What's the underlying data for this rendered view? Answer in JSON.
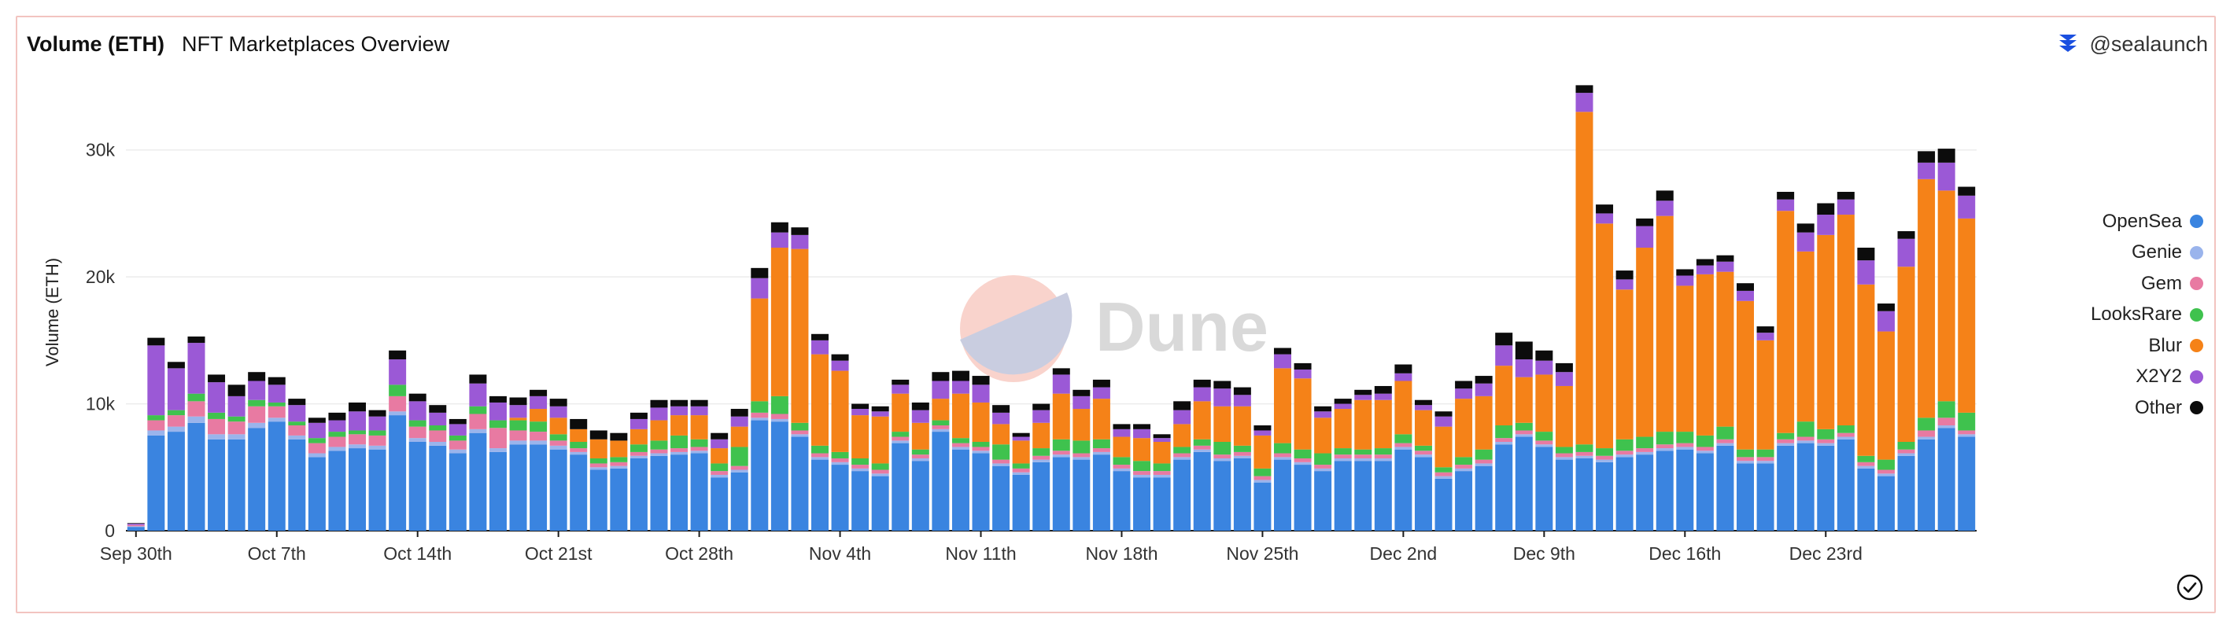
{
  "header": {
    "title": "Volume (ETH)",
    "subtitle": "NFT Marketplaces Overview"
  },
  "brand": {
    "handle": "@sealaunch",
    "icon": "sealaunch-logo-icon"
  },
  "watermark": {
    "text": "Dune"
  },
  "chart_data": {
    "type": "bar",
    "stacked": true,
    "ylabel": "Volume (ETH)",
    "xlabel": "",
    "ylim": [
      0,
      35000
    ],
    "yticks": [
      0,
      10000,
      20000,
      30000
    ],
    "ytick_labels": [
      "0",
      "10k",
      "20k",
      "30k"
    ],
    "xtick_labels": [
      "Sep 30th",
      "Oct 7th",
      "Oct 14th",
      "Oct 21st",
      "Oct 28th",
      "Nov 4th",
      "Nov 11th",
      "Nov 18th",
      "Nov 25th",
      "Dec 2nd",
      "Dec 9th",
      "Dec 16th",
      "Dec 23rd"
    ],
    "legend_position": "right",
    "grid": true,
    "series": [
      {
        "name": "OpenSea",
        "color": "#3a84e0"
      },
      {
        "name": "Genie",
        "color": "#9ab4ec"
      },
      {
        "name": "Gem",
        "color": "#e87aa2"
      },
      {
        "name": "LooksRare",
        "color": "#3fc24e"
      },
      {
        "name": "Blur",
        "color": "#f58218"
      },
      {
        "name": "X2Y2",
        "color": "#9b59d6"
      },
      {
        "name": "Other",
        "color": "#0c0c0c"
      }
    ],
    "days": [
      {
        "date": "Sep 30th",
        "values": [
          300,
          50,
          100,
          0,
          0,
          100,
          50
        ]
      },
      {
        "date": "Oct 1st",
        "values": [
          7500,
          400,
          800,
          400,
          0,
          5500,
          600
        ]
      },
      {
        "date": "Oct 2nd",
        "values": [
          7800,
          400,
          900,
          400,
          0,
          3300,
          500
        ]
      },
      {
        "date": "Oct 3rd",
        "values": [
          8500,
          500,
          1200,
          600,
          0,
          4000,
          500
        ]
      },
      {
        "date": "Oct 4th",
        "values": [
          7200,
          400,
          1200,
          500,
          0,
          2400,
          600
        ]
      },
      {
        "date": "Oct 5th",
        "values": [
          7200,
          400,
          1000,
          400,
          0,
          1600,
          900
        ]
      },
      {
        "date": "Oct 6th",
        "values": [
          8100,
          400,
          1300,
          500,
          0,
          1500,
          700
        ]
      },
      {
        "date": "Oct 7th",
        "values": [
          8600,
          300,
          900,
          300,
          0,
          1400,
          600
        ]
      },
      {
        "date": "Oct 8th",
        "values": [
          7200,
          300,
          800,
          300,
          0,
          1300,
          500
        ]
      },
      {
        "date": "Oct 9th",
        "values": [
          5800,
          300,
          800,
          400,
          0,
          1200,
          400
        ]
      },
      {
        "date": "Oct 10th",
        "values": [
          6300,
          300,
          800,
          400,
          0,
          900,
          600
        ]
      },
      {
        "date": "Oct 11th",
        "values": [
          6500,
          300,
          800,
          300,
          0,
          1500,
          700
        ]
      },
      {
        "date": "Oct 12th",
        "values": [
          6400,
          300,
          800,
          400,
          0,
          1100,
          500
        ]
      },
      {
        "date": "Oct 13th",
        "values": [
          9100,
          300,
          1200,
          900,
          0,
          2000,
          700
        ]
      },
      {
        "date": "Oct 14th",
        "values": [
          7000,
          300,
          900,
          500,
          0,
          1500,
          600
        ]
      },
      {
        "date": "Oct 15th",
        "values": [
          6700,
          300,
          900,
          400,
          0,
          1000,
          600
        ]
      },
      {
        "date": "Oct 16th",
        "values": [
          6100,
          300,
          700,
          400,
          0,
          900,
          400
        ]
      },
      {
        "date": "Oct 17th",
        "values": [
          7700,
          300,
          1200,
          600,
          0,
          1800,
          700
        ]
      },
      {
        "date": "Oct 18th",
        "values": [
          6200,
          300,
          1600,
          600,
          0,
          1400,
          500
        ]
      },
      {
        "date": "Oct 19th",
        "values": [
          6800,
          300,
          800,
          800,
          200,
          1000,
          600
        ]
      },
      {
        "date": "Oct 20th",
        "values": [
          6800,
          300,
          700,
          800,
          1000,
          1000,
          500
        ]
      },
      {
        "date": "Oct 21st",
        "values": [
          6400,
          300,
          400,
          500,
          1300,
          900,
          600
        ]
      },
      {
        "date": "Oct 22nd",
        "values": [
          6000,
          200,
          300,
          500,
          1000,
          0,
          800
        ]
      },
      {
        "date": "Oct 23rd",
        "values": [
          4800,
          200,
          300,
          400,
          1500,
          0,
          700
        ]
      },
      {
        "date": "Oct 24th",
        "values": [
          4900,
          200,
          300,
          400,
          1300,
          0,
          600
        ]
      },
      {
        "date": "Oct 25th",
        "values": [
          5700,
          200,
          300,
          600,
          1200,
          800,
          500
        ]
      },
      {
        "date": "Oct 26th",
        "values": [
          5900,
          200,
          300,
          700,
          1600,
          1000,
          600
        ]
      },
      {
        "date": "Oct 27th",
        "values": [
          6000,
          200,
          300,
          1000,
          1600,
          700,
          500
        ]
      },
      {
        "date": "Oct 28th",
        "values": [
          6100,
          200,
          300,
          600,
          1900,
          700,
          500
        ]
      },
      {
        "date": "Oct 29th",
        "values": [
          4200,
          200,
          300,
          600,
          1200,
          700,
          500
        ]
      },
      {
        "date": "Oct 30th",
        "values": [
          4600,
          200,
          300,
          1500,
          1600,
          800,
          600
        ]
      },
      {
        "date": "Oct 31st",
        "values": [
          8700,
          200,
          400,
          900,
          8100,
          1600,
          800
        ]
      },
      {
        "date": "Nov 1st",
        "values": [
          8600,
          200,
          400,
          1400,
          11700,
          1200,
          800
        ]
      },
      {
        "date": "Nov 2nd",
        "values": [
          7400,
          200,
          300,
          600,
          13700,
          1100,
          600
        ]
      },
      {
        "date": "Nov 3rd",
        "values": [
          5600,
          200,
          300,
          600,
          7200,
          1100,
          500
        ]
      },
      {
        "date": "Nov 4th",
        "values": [
          5200,
          200,
          300,
          500,
          6400,
          800,
          500
        ]
      },
      {
        "date": "Nov 5th",
        "values": [
          4700,
          200,
          300,
          500,
          3400,
          500,
          400
        ]
      },
      {
        "date": "Nov 6th",
        "values": [
          4300,
          200,
          300,
          500,
          3700,
          400,
          400
        ]
      },
      {
        "date": "Nov 7th",
        "values": [
          6900,
          200,
          300,
          400,
          3000,
          700,
          400
        ]
      },
      {
        "date": "Nov 8th",
        "values": [
          5500,
          200,
          300,
          400,
          2100,
          1000,
          600
        ]
      },
      {
        "date": "Nov 9th",
        "values": [
          7800,
          200,
          300,
          400,
          1700,
          1400,
          700
        ]
      },
      {
        "date": "Nov 10th",
        "values": [
          6400,
          200,
          300,
          400,
          3500,
          1000,
          800
        ]
      },
      {
        "date": "Nov 11th",
        "values": [
          6100,
          200,
          300,
          400,
          3100,
          1400,
          700
        ]
      },
      {
        "date": "Nov 12th",
        "values": [
          5100,
          200,
          300,
          1200,
          1600,
          900,
          600
        ]
      },
      {
        "date": "Nov 13th",
        "values": [
          4400,
          200,
          300,
          400,
          1800,
          300,
          300
        ]
      },
      {
        "date": "Nov 14th",
        "values": [
          5400,
          200,
          300,
          600,
          2000,
          1000,
          500
        ]
      },
      {
        "date": "Nov 15th",
        "values": [
          5800,
          200,
          300,
          900,
          3600,
          1500,
          500
        ]
      },
      {
        "date": "Nov 16th",
        "values": [
          5600,
          200,
          300,
          1000,
          2500,
          1000,
          500
        ]
      },
      {
        "date": "Nov 17th",
        "values": [
          6000,
          200,
          300,
          700,
          3200,
          900,
          600
        ]
      },
      {
        "date": "Nov 18th",
        "values": [
          4700,
          200,
          300,
          600,
          1600,
          600,
          400
        ]
      },
      {
        "date": "Nov 19th",
        "values": [
          4200,
          200,
          300,
          800,
          1800,
          700,
          400
        ]
      },
      {
        "date": "Nov 20th",
        "values": [
          4200,
          200,
          300,
          600,
          1700,
          300,
          300
        ]
      },
      {
        "date": "Nov 21st",
        "values": [
          5600,
          200,
          300,
          500,
          1800,
          1100,
          700
        ]
      },
      {
        "date": "Nov 22nd",
        "values": [
          6200,
          200,
          300,
          500,
          3000,
          1100,
          600
        ]
      },
      {
        "date": "Nov 23rd",
        "values": [
          5500,
          200,
          300,
          1000,
          2800,
          1400,
          600
        ]
      },
      {
        "date": "Nov 24th",
        "values": [
          5700,
          200,
          300,
          500,
          3100,
          900,
          600
        ]
      },
      {
        "date": "Nov 25th",
        "values": [
          3800,
          200,
          300,
          600,
          2600,
          400,
          400
        ]
      },
      {
        "date": "Nov 26th",
        "values": [
          5600,
          200,
          300,
          800,
          5900,
          1100,
          500
        ]
      },
      {
        "date": "Nov 27th",
        "values": [
          5200,
          200,
          300,
          700,
          5600,
          700,
          500
        ]
      },
      {
        "date": "Nov 28th",
        "values": [
          4700,
          200,
          300,
          900,
          2800,
          500,
          400
        ]
      },
      {
        "date": "Nov 29th",
        "values": [
          5500,
          200,
          300,
          500,
          3100,
          400,
          400
        ]
      },
      {
        "date": "Nov 30th",
        "values": [
          5500,
          200,
          300,
          400,
          3900,
          400,
          400
        ]
      },
      {
        "date": "Dec 1st",
        "values": [
          5500,
          200,
          300,
          500,
          3800,
          500,
          600
        ]
      },
      {
        "date": "Dec 2nd",
        "values": [
          6400,
          200,
          300,
          700,
          4200,
          600,
          700
        ]
      },
      {
        "date": "Dec 3rd",
        "values": [
          5800,
          200,
          300,
          400,
          2800,
          400,
          400
        ]
      },
      {
        "date": "Dec 4th",
        "values": [
          4100,
          200,
          300,
          400,
          3200,
          800,
          400
        ]
      },
      {
        "date": "Dec 5th",
        "values": [
          4700,
          200,
          300,
          600,
          4600,
          800,
          600
        ]
      },
      {
        "date": "Dec 6th",
        "values": [
          5100,
          200,
          300,
          800,
          4200,
          1000,
          600
        ]
      },
      {
        "date": "Dec 7th",
        "values": [
          6800,
          200,
          300,
          1000,
          4700,
          1600,
          1000
        ]
      },
      {
        "date": "Dec 8th",
        "values": [
          7400,
          200,
          300,
          600,
          3600,
          1400,
          1400
        ]
      },
      {
        "date": "Dec 9th",
        "values": [
          6600,
          200,
          300,
          700,
          4500,
          1100,
          800
        ]
      },
      {
        "date": "Dec 10th",
        "values": [
          5600,
          200,
          300,
          500,
          4800,
          1100,
          700
        ]
      },
      {
        "date": "Dec 11th",
        "values": [
          5700,
          200,
          300,
          600,
          26200,
          1500,
          600
        ]
      },
      {
        "date": "Dec 12th",
        "values": [
          5400,
          200,
          300,
          600,
          17700,
          800,
          700
        ]
      },
      {
        "date": "Dec 13th",
        "values": [
          5800,
          200,
          300,
          900,
          11800,
          800,
          700
        ]
      },
      {
        "date": "Dec 14th",
        "values": [
          6000,
          200,
          300,
          900,
          14900,
          1700,
          600
        ]
      },
      {
        "date": "Dec 15th",
        "values": [
          6300,
          200,
          300,
          1000,
          17000,
          1200,
          800
        ]
      },
      {
        "date": "Dec 16th",
        "values": [
          6400,
          200,
          300,
          900,
          11500,
          800,
          500
        ]
      },
      {
        "date": "Dec 17th",
        "values": [
          6100,
          200,
          300,
          900,
          12700,
          700,
          500
        ]
      },
      {
        "date": "Dec 18th",
        "values": [
          6700,
          200,
          300,
          1000,
          12200,
          800,
          500
        ]
      },
      {
        "date": "Dec 19th",
        "values": [
          5300,
          200,
          300,
          600,
          11700,
          800,
          600
        ]
      },
      {
        "date": "Dec 20th",
        "values": [
          5300,
          200,
          300,
          600,
          8600,
          600,
          500
        ]
      },
      {
        "date": "Dec 21st",
        "values": [
          6700,
          200,
          300,
          500,
          17500,
          900,
          600
        ]
      },
      {
        "date": "Dec 22nd",
        "values": [
          6900,
          200,
          300,
          1200,
          13400,
          1500,
          700
        ]
      },
      {
        "date": "Dec 23rd",
        "values": [
          6700,
          200,
          300,
          800,
          15300,
          1600,
          900
        ]
      },
      {
        "date": "Dec 24th",
        "values": [
          7200,
          200,
          300,
          600,
          16600,
          1200,
          600
        ]
      },
      {
        "date": "Dec 25th",
        "values": [
          4900,
          200,
          300,
          500,
          13500,
          1900,
          1000
        ]
      },
      {
        "date": "Dec 26th",
        "values": [
          4300,
          200,
          300,
          800,
          10100,
          1600,
          600
        ]
      },
      {
        "date": "Dec 27th",
        "values": [
          5900,
          200,
          300,
          600,
          13800,
          2200,
          600
        ]
      },
      {
        "date": "Dec 28th",
        "values": [
          7200,
          200,
          500,
          1000,
          18800,
          1300,
          900
        ]
      },
      {
        "date": "Dec 29th",
        "values": [
          8100,
          200,
          600,
          1300,
          16600,
          2200,
          1100
        ]
      },
      {
        "date": "Dec 30th",
        "values": [
          7400,
          200,
          300,
          1400,
          15300,
          1800,
          700
        ]
      }
    ]
  }
}
